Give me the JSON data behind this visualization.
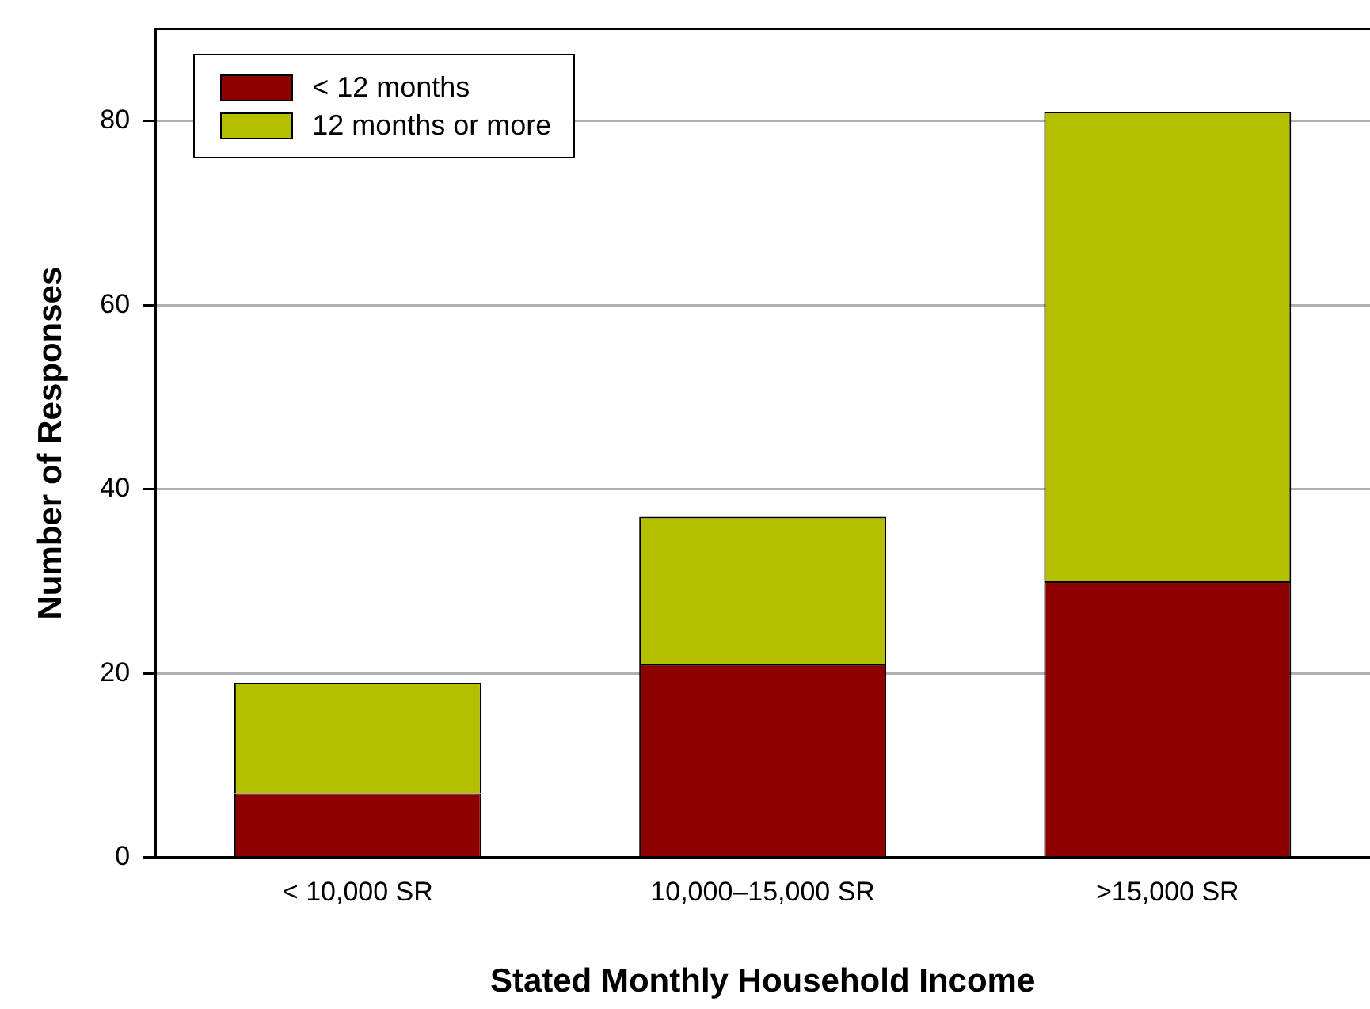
{
  "chart_data": {
    "type": "bar",
    "xlabel": "Stated Monthly Household Income",
    "ylabel": "Number of Responses",
    "categories": [
      "< 10,000 SR",
      "10,000–15,000 SR",
      ">15,000 SR"
    ],
    "series": [
      {
        "name": "< 12 months",
        "color": "#8e0000",
        "values": [
          7,
          21,
          30
        ]
      },
      {
        "name": "12 months or more",
        "color": "#b4bf00",
        "values": [
          12,
          16,
          51
        ]
      }
    ],
    "stacked": true,
    "ylim": [
      0,
      90
    ],
    "yticks": [
      0,
      20,
      40,
      60,
      80
    ],
    "grid": "y",
    "legend": "top left"
  }
}
